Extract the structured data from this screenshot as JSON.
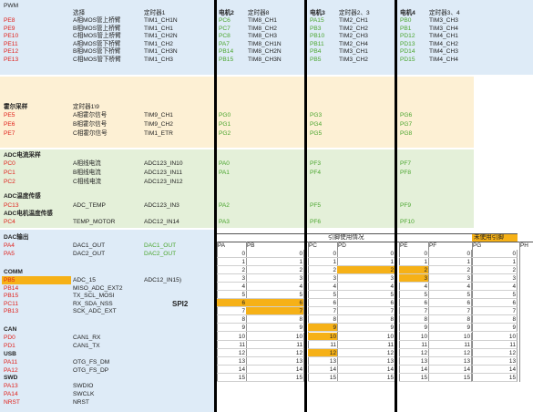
{
  "colors": {
    "red": "#e0201b",
    "green": "#4aa52e",
    "blue_band": "#deebf7",
    "peach_band": "#fdf0d4",
    "green_band": "#e4f0d9",
    "highlight": "#f6b117"
  },
  "pwm": {
    "title": "PWM",
    "select_label": "选择",
    "timer_label": "定时器1",
    "rows": [
      {
        "pin": "PE8",
        "desc": "A相MOS管上桥臂",
        "ch": "TIM1_CH1N"
      },
      {
        "pin": "PE9",
        "desc": "B相MOS管上桥臂",
        "ch": "TIM1_CH1"
      },
      {
        "pin": "PE10",
        "desc": "C相MOS管上桥臂",
        "ch": "TIM1_CH2N"
      },
      {
        "pin": "PE11",
        "desc": "A相MOS管下桥臂",
        "ch": "TIM1_CH2"
      },
      {
        "pin": "PE12",
        "desc": "B相MOS管下桥臂",
        "ch": "TIM1_CH3N"
      },
      {
        "pin": "PE13",
        "desc": "C相MOS管下桥臂",
        "ch": "TIM1_CH3"
      }
    ]
  },
  "motor2": {
    "title": "电机2",
    "timer": "定时器8",
    "rows": [
      {
        "pin": "PC6",
        "ch": "TIM8_CH1"
      },
      {
        "pin": "PC7",
        "ch": "TIM8_CH2"
      },
      {
        "pin": "PC8",
        "ch": "TIM8_CH3"
      },
      {
        "pin": "PA7",
        "ch": "TIM8_CH1N"
      },
      {
        "pin": "PB14",
        "ch": "TIM8_CH2N"
      },
      {
        "pin": "PB15",
        "ch": "TIM8_CH3N"
      }
    ],
    "hall": [
      "PG0",
      "PG1",
      "PG2"
    ],
    "adc_cur": [
      "PA0",
      "PA1"
    ],
    "adc_temp": "PA2",
    "adc_motor": "PA3"
  },
  "motor3": {
    "title": "电机3",
    "timer": "定时器2、3",
    "rows": [
      {
        "pin": "PA15",
        "ch": "TIM2_CH1"
      },
      {
        "pin": "PB3",
        "ch": "TIM2_CH2"
      },
      {
        "pin": "PB10",
        "ch": "TIM2_CH3"
      },
      {
        "pin": "PB11",
        "ch": "TIM2_CH4"
      },
      {
        "pin": "PB4",
        "ch": "TIM3_CH1"
      },
      {
        "pin": "PB5",
        "ch": "TIM3_CH2"
      }
    ],
    "hall": [
      "PG3",
      "PG4",
      "PG5"
    ],
    "adc_cur": [
      "PF3",
      "PF4"
    ],
    "adc_temp": "PF5",
    "adc_motor": "PF6"
  },
  "motor4": {
    "title": "电机4",
    "timer": "定时器3、4",
    "rows": [
      {
        "pin": "PB0",
        "ch": "TIM3_CH3"
      },
      {
        "pin": "PB1",
        "ch": "TIM3_CH4"
      },
      {
        "pin": "PD12",
        "ch": "TIM4_CH1"
      },
      {
        "pin": "PD13",
        "ch": "TIM4_CH2"
      },
      {
        "pin": "PD14",
        "ch": "TIM4_CH3"
      },
      {
        "pin": "PD15",
        "ch": "TIM4_CH4"
      }
    ],
    "hall": [
      "PG6",
      "PG7",
      "PG8"
    ],
    "adc_cur": [
      "PF7",
      "PF8"
    ],
    "adc_temp": "PF9",
    "adc_motor": "PF10"
  },
  "hall": {
    "title": "霍尔采样",
    "timer": "定时器1\\9",
    "rows": [
      {
        "pin": "PE5",
        "desc": "A相霍尔信号",
        "ch": "TIM9_CH1"
      },
      {
        "pin": "PE6",
        "desc": "B相霍尔信号",
        "ch": "TIM9_CH2"
      },
      {
        "pin": "PE7",
        "desc": "C相霍尔信号",
        "ch": "TIM1_ETR"
      }
    ]
  },
  "adc_current": {
    "title": "ADC电流采样",
    "rows": [
      {
        "pin": "PC0",
        "desc": "A相线电流",
        "ch": "ADC123_IN10"
      },
      {
        "pin": "PC1",
        "desc": "B相线电流",
        "ch": "ADC123_IN11"
      },
      {
        "pin": "PC2",
        "desc": "C相线电流",
        "ch": "ADC123_IN12"
      }
    ]
  },
  "adc_temp": {
    "title": "ADC温度传感",
    "pin": "PC13",
    "desc": "ADC_TEMP",
    "ch": "ADC123_IN3"
  },
  "adc_motor_temp": {
    "title": "ADC电机温度传感",
    "pin": "PC4",
    "desc": "TEMP_MOTOR",
    "ch": "ADC12_IN14"
  },
  "dac": {
    "title": "DAC输出",
    "rows": [
      {
        "pin": "PA4",
        "desc": "DAC1_OUT",
        "ch": "DAC1_OUT"
      },
      {
        "pin": "PA5",
        "desc": "DAC2_OUT",
        "ch": "DAC2_OUT"
      }
    ]
  },
  "comm": {
    "title": "COMM",
    "spi_label": "SPI2",
    "rows": [
      {
        "pin": "PB5",
        "desc": "ADC_15",
        "ch": "ADC12_IN15)"
      },
      {
        "pin": "PB14",
        "desc": "MISO_ADC_EXT2",
        "ch": ""
      },
      {
        "pin": "PB15",
        "desc": "TX_SCL_MOSI",
        "ch": ""
      },
      {
        "pin": "PC11",
        "desc": "RX_SDA_NSS",
        "ch": ""
      },
      {
        "pin": "PB13",
        "desc": "SCK_ADC_EXT",
        "ch": ""
      }
    ]
  },
  "can": {
    "title": "CAN",
    "rows": [
      {
        "pin": "PD0",
        "desc": "CAN1_RX"
      },
      {
        "pin": "PD1",
        "desc": "CAN1_TX"
      }
    ]
  },
  "usb": {
    "title": "USB",
    "rows": [
      {
        "pin": "PA11",
        "desc": "OTG_FS_DM"
      },
      {
        "pin": "PA12",
        "desc": "OTG_FS_DP"
      }
    ]
  },
  "swd": {
    "title": "SWD",
    "rows": [
      {
        "pin": "PA13",
        "desc": "SWDIO"
      },
      {
        "pin": "PA14",
        "desc": "SWCLK"
      },
      {
        "pin": "NRST",
        "desc": "NRST"
      }
    ]
  },
  "pin_table": {
    "title": "引脚使用情况",
    "unused_label": "未使用引脚",
    "columns": [
      "PA",
      "PB",
      "PC",
      "PD",
      "PE",
      "PF",
      "PG",
      "PH"
    ],
    "rows": [
      0,
      1,
      2,
      3,
      4,
      5,
      6,
      7,
      8,
      9,
      10,
      11,
      12,
      13,
      14,
      15
    ],
    "used": {
      "PA": [
        0,
        1,
        2,
        3,
        4,
        5,
        7,
        8,
        9,
        10,
        11,
        12,
        13,
        14,
        15
      ],
      "PB": [
        0,
        1,
        2,
        3,
        4,
        5,
        8,
        9,
        10,
        11,
        12,
        13,
        14,
        15
      ],
      "PC": [
        0,
        1,
        2,
        3,
        4,
        5,
        6,
        7,
        8,
        11,
        13,
        14,
        15
      ],
      "PD": [
        0,
        1,
        3,
        4,
        5,
        6,
        7,
        8,
        9,
        10,
        11,
        12,
        13,
        14,
        15
      ],
      "PE": [
        0,
        1,
        4,
        5,
        6,
        7,
        8,
        9,
        10,
        11,
        12,
        13,
        14,
        15
      ],
      "PF": [
        0,
        1,
        2,
        3,
        4,
        5,
        6,
        7,
        8,
        9,
        10,
        11,
        12,
        13,
        14,
        15
      ],
      "PG": [
        0,
        1,
        2,
        3,
        4,
        5,
        6,
        7,
        8,
        9,
        10,
        11,
        12,
        13,
        14,
        15
      ]
    }
  }
}
